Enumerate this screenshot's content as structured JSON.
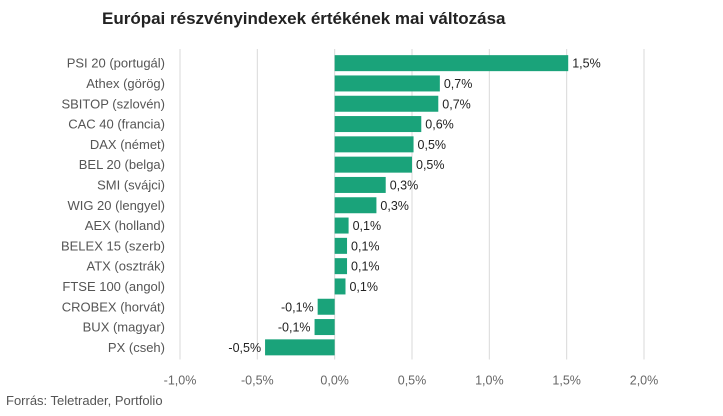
{
  "chart_data": {
    "type": "bar",
    "orientation": "horizontal",
    "title": "Európai részvényindexek értékének mai változása",
    "categories": [
      "PSI 20 (portugál)",
      "Athex (görög)",
      "SBITOP (szlovén)",
      "CAC 40 (francia)",
      "DAX (német)",
      "BEL 20 (belga)",
      "SMI (svájci)",
      "WIG 20 (lengyel)",
      "AEX (holland)",
      "BELEX 15 (szerb)",
      "ATX (osztrák)",
      "FTSE 100 (angol)",
      "CROBEX (horvát)",
      "BUX (magyar)",
      "PX (cseh)"
    ],
    "values": [
      1.51,
      0.68,
      0.67,
      0.56,
      0.51,
      0.5,
      0.33,
      0.27,
      0.09,
      0.08,
      0.08,
      0.07,
      -0.11,
      -0.13,
      -0.45
    ],
    "value_labels": [
      "1,5%",
      "0,7%",
      "0,7%",
      "0,6%",
      "0,5%",
      "0,5%",
      "0,3%",
      "0,3%",
      "0,1%",
      "0,1%",
      "0,1%",
      "0,1%",
      "-0,1%",
      "-0,1%",
      "-0,5%"
    ],
    "xlim": [
      -1.0,
      2.0
    ],
    "xticks": [
      -1.0,
      -0.5,
      0.0,
      0.5,
      1.0,
      1.5,
      2.0
    ],
    "xtick_labels": [
      "-1,0%",
      "-0,5%",
      "0,0%",
      "0,5%",
      "1,0%",
      "1,5%",
      "2,0%"
    ],
    "grid": "vertical",
    "bar_color": "#1aa37a",
    "grid_color": "#d9d9d9",
    "source": "Forrás: Teletrader, Portfolio"
  }
}
